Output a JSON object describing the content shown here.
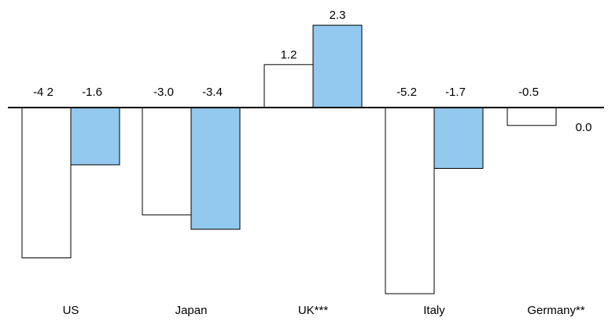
{
  "chart_data": {
    "type": "bar",
    "categories": [
      "US",
      "Japan",
      "UK***",
      "Italy",
      "Germany**"
    ],
    "series": [
      {
        "values": [
          -4.2,
          -3.0,
          1.2,
          -5.2,
          -0.5
        ],
        "value_labels": [
          "-4 2",
          "-3.0",
          "1.2",
          "-5.2",
          "-0.5"
        ],
        "fill": "#ffffff"
      },
      {
        "values": [
          -1.6,
          -3.4,
          2.3,
          -1.7,
          0.0
        ],
        "value_labels": [
          "-1.6",
          "-3.4",
          "2.3",
          "-1.7",
          "0.0"
        ],
        "fill": "#93c9ee"
      }
    ],
    "title": "",
    "xlabel": "",
    "ylabel": "",
    "ylim": [
      -5.2,
      2.3
    ],
    "grid": false,
    "legend": "none"
  },
  "colors": {
    "bar_outline": "#000000",
    "axis": "#000000"
  }
}
